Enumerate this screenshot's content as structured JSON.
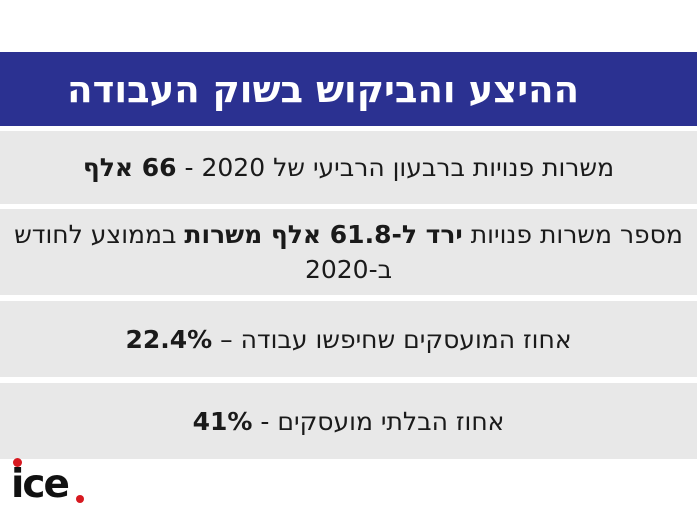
{
  "header": {
    "title": "ההיצע והביקוש בשוק העבודה"
  },
  "rows": [
    {
      "plain": "משרות פנויות ברבעון הרביעי של 2020 - ",
      "bold": "66 אלף"
    },
    {
      "plain": "מספר משרות פנויות ",
      "bold": "ירד ל-61.8 אלף משרות",
      "plain_after": " בממוצע לחודש ב-2020"
    },
    {
      "plain": "אחוז המועסקים שחיפשו עבודה – ",
      "bold": "22.4%"
    },
    {
      "plain": "אחוז הבלתי מועסקים - ",
      "bold": "41%"
    }
  ],
  "logo": {
    "text": "ice",
    "accent_color": "#d71920"
  },
  "colors": {
    "header_bg": "#2b3191",
    "row_bg": "#e8e8e8"
  }
}
